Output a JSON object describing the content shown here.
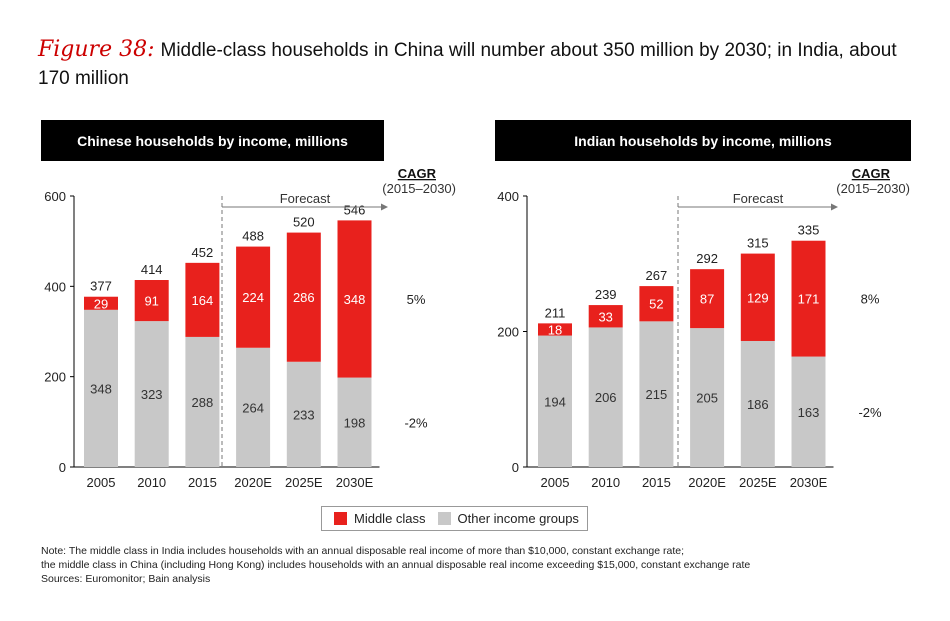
{
  "title": {
    "figure_label": "Figure 38:",
    "text": "Middle-class households in China will number about 350 million by 2030; in India, about 170 million"
  },
  "colors": {
    "middle_class": "#e8211d",
    "other": "#c8c8c8",
    "header_bg": "#000000"
  },
  "chart_data": [
    {
      "type": "bar",
      "stacked": true,
      "title": "Chinese households by income, millions",
      "categories": [
        "2005",
        "2010",
        "2015",
        "2020E",
        "2025E",
        "2030E"
      ],
      "series": [
        {
          "name": "Other income groups",
          "values": [
            348,
            323,
            288,
            264,
            233,
            198
          ]
        },
        {
          "name": "Middle class",
          "values": [
            29,
            91,
            164,
            224,
            286,
            348
          ]
        }
      ],
      "totals": [
        377,
        414,
        452,
        488,
        520,
        546
      ],
      "ylim": [
        0,
        600
      ],
      "yticks": [
        0,
        200,
        400,
        600
      ],
      "forecast_label": "Forecast",
      "cagr_header": "CAGR",
      "cagr_period": "(2015–2030)",
      "cagr": {
        "middle_class": "5%",
        "other": "-2%"
      }
    },
    {
      "type": "bar",
      "stacked": true,
      "title": "Indian households by income, millions",
      "categories": [
        "2005",
        "2010",
        "2015",
        "2020E",
        "2025E",
        "2030E"
      ],
      "series": [
        {
          "name": "Other income groups",
          "values": [
            194,
            206,
            215,
            205,
            186,
            163
          ]
        },
        {
          "name": "Middle class",
          "values": [
            18,
            33,
            52,
            87,
            129,
            171
          ]
        }
      ],
      "totals": [
        211,
        239,
        267,
        292,
        315,
        335
      ],
      "ylim": [
        0,
        400
      ],
      "yticks": [
        0,
        200,
        400
      ],
      "forecast_label": "Forecast",
      "cagr_header": "CAGR",
      "cagr_period": "(2015–2030)",
      "cagr": {
        "middle_class": "8%",
        "other": "-2%"
      }
    }
  ],
  "legend": {
    "middle_class": "Middle class",
    "other": "Other income groups"
  },
  "notes": {
    "line1": "Note: The middle class in India includes households with an annual disposable real income of more than $10,000, constant exchange rate;",
    "line2": "the middle class in China (including Hong Kong) includes households with an annual disposable real income exceeding $15,000, constant exchange rate",
    "line3": "Sources: Euromonitor; Bain analysis"
  }
}
